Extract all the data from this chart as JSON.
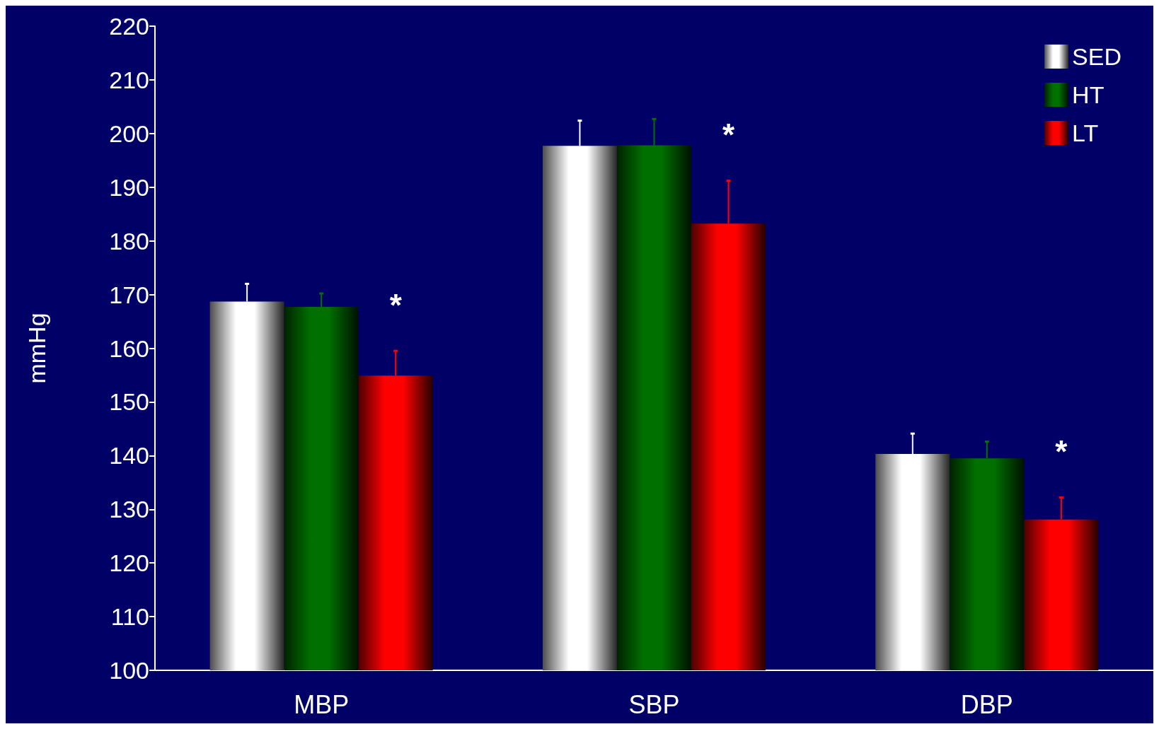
{
  "chart_data": {
    "type": "bar",
    "ylabel": "mmHg",
    "categories": [
      "MBP",
      "SBP",
      "DBP"
    ],
    "series": [
      {
        "name": "SED",
        "color": "#ffffff",
        "values": [
          168.7,
          197.7,
          140.3
        ],
        "errors": [
          3.3,
          4.7,
          3.8
        ]
      },
      {
        "name": "HT",
        "color": "#007000",
        "values": [
          167.7,
          197.8,
          139.5
        ],
        "errors": [
          2.5,
          4.9,
          3.1
        ]
      },
      {
        "name": "LT",
        "color": "#ff0000",
        "values": [
          154.9,
          183.2,
          128.1
        ],
        "errors": [
          4.6,
          8.0,
          4.1
        ]
      }
    ],
    "ylim": [
      100,
      220
    ],
    "yticks": [
      100,
      110,
      120,
      130,
      140,
      150,
      160,
      170,
      180,
      190,
      200,
      210,
      220
    ],
    "annotations": [
      "*",
      "*",
      "*"
    ],
    "grid": false,
    "legend": "top right"
  }
}
